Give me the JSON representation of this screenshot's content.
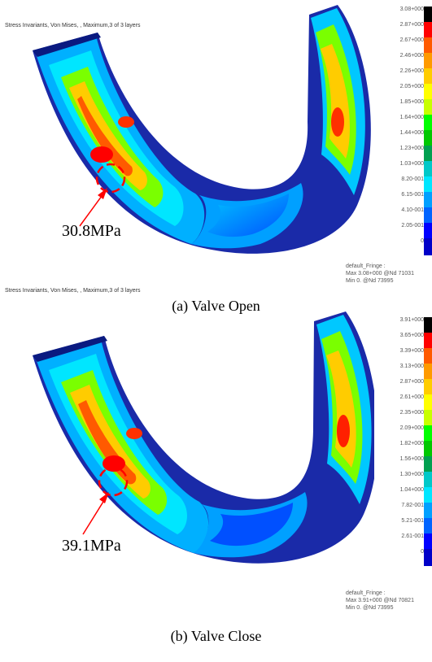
{
  "panels": [
    {
      "plot_title": "Stress Invariants, Von Mises, , Maximum,3 of 3 layers",
      "scale_labels": [
        "3.08+000",
        "2.87+000",
        "2.67+000",
        "2.46+000",
        "2.26+000",
        "2.05+000",
        "1.85+000",
        "1.64+000",
        "1.44+000",
        "1.23+000",
        "1.03+000",
        "8.20-001",
        "6.15-001",
        "4.10-001",
        "2.05-001",
        "0"
      ],
      "fringe_title": "default_Fringe :",
      "fringe_max": "Max 3.08+000 @Nd 71031",
      "fringe_min": "Min 0. @Nd 73995",
      "annotation": "30.8MPa",
      "caption": "(a)  Valve Open"
    },
    {
      "plot_title": "Stress Invariants, Von Mises, , Maximum,3 of 3 layers",
      "scale_labels": [
        "3.91+000",
        "3.65+000",
        "3.39+000",
        "3.13+000",
        "2.87+000",
        "2.61+000",
        "2.35+000",
        "2.09+000",
        "1.82+000",
        "1.56+000",
        "1.30+000",
        "1.04+000",
        "7.82-001",
        "5.21-001",
        "2.61-001",
        "0"
      ],
      "fringe_title": "default_Fringe :",
      "fringe_max": "Max 3.91+000 @Nd 70821",
      "fringe_min": "Min 0. @Nd 73995",
      "annotation": "39.1MPa",
      "caption": "(b)  Valve Close"
    }
  ],
  "colors": {
    "scale": [
      "#000000",
      "#ff0000",
      "#ff5a00",
      "#ff9a00",
      "#ffcc00",
      "#ffff00",
      "#c8ff00",
      "#00ff00",
      "#00c800",
      "#00a050",
      "#00c8c8",
      "#00e6ff",
      "#00a0ff",
      "#0064ff",
      "#0000ff",
      "#0000c8"
    ],
    "annotation": "#ff0000"
  }
}
